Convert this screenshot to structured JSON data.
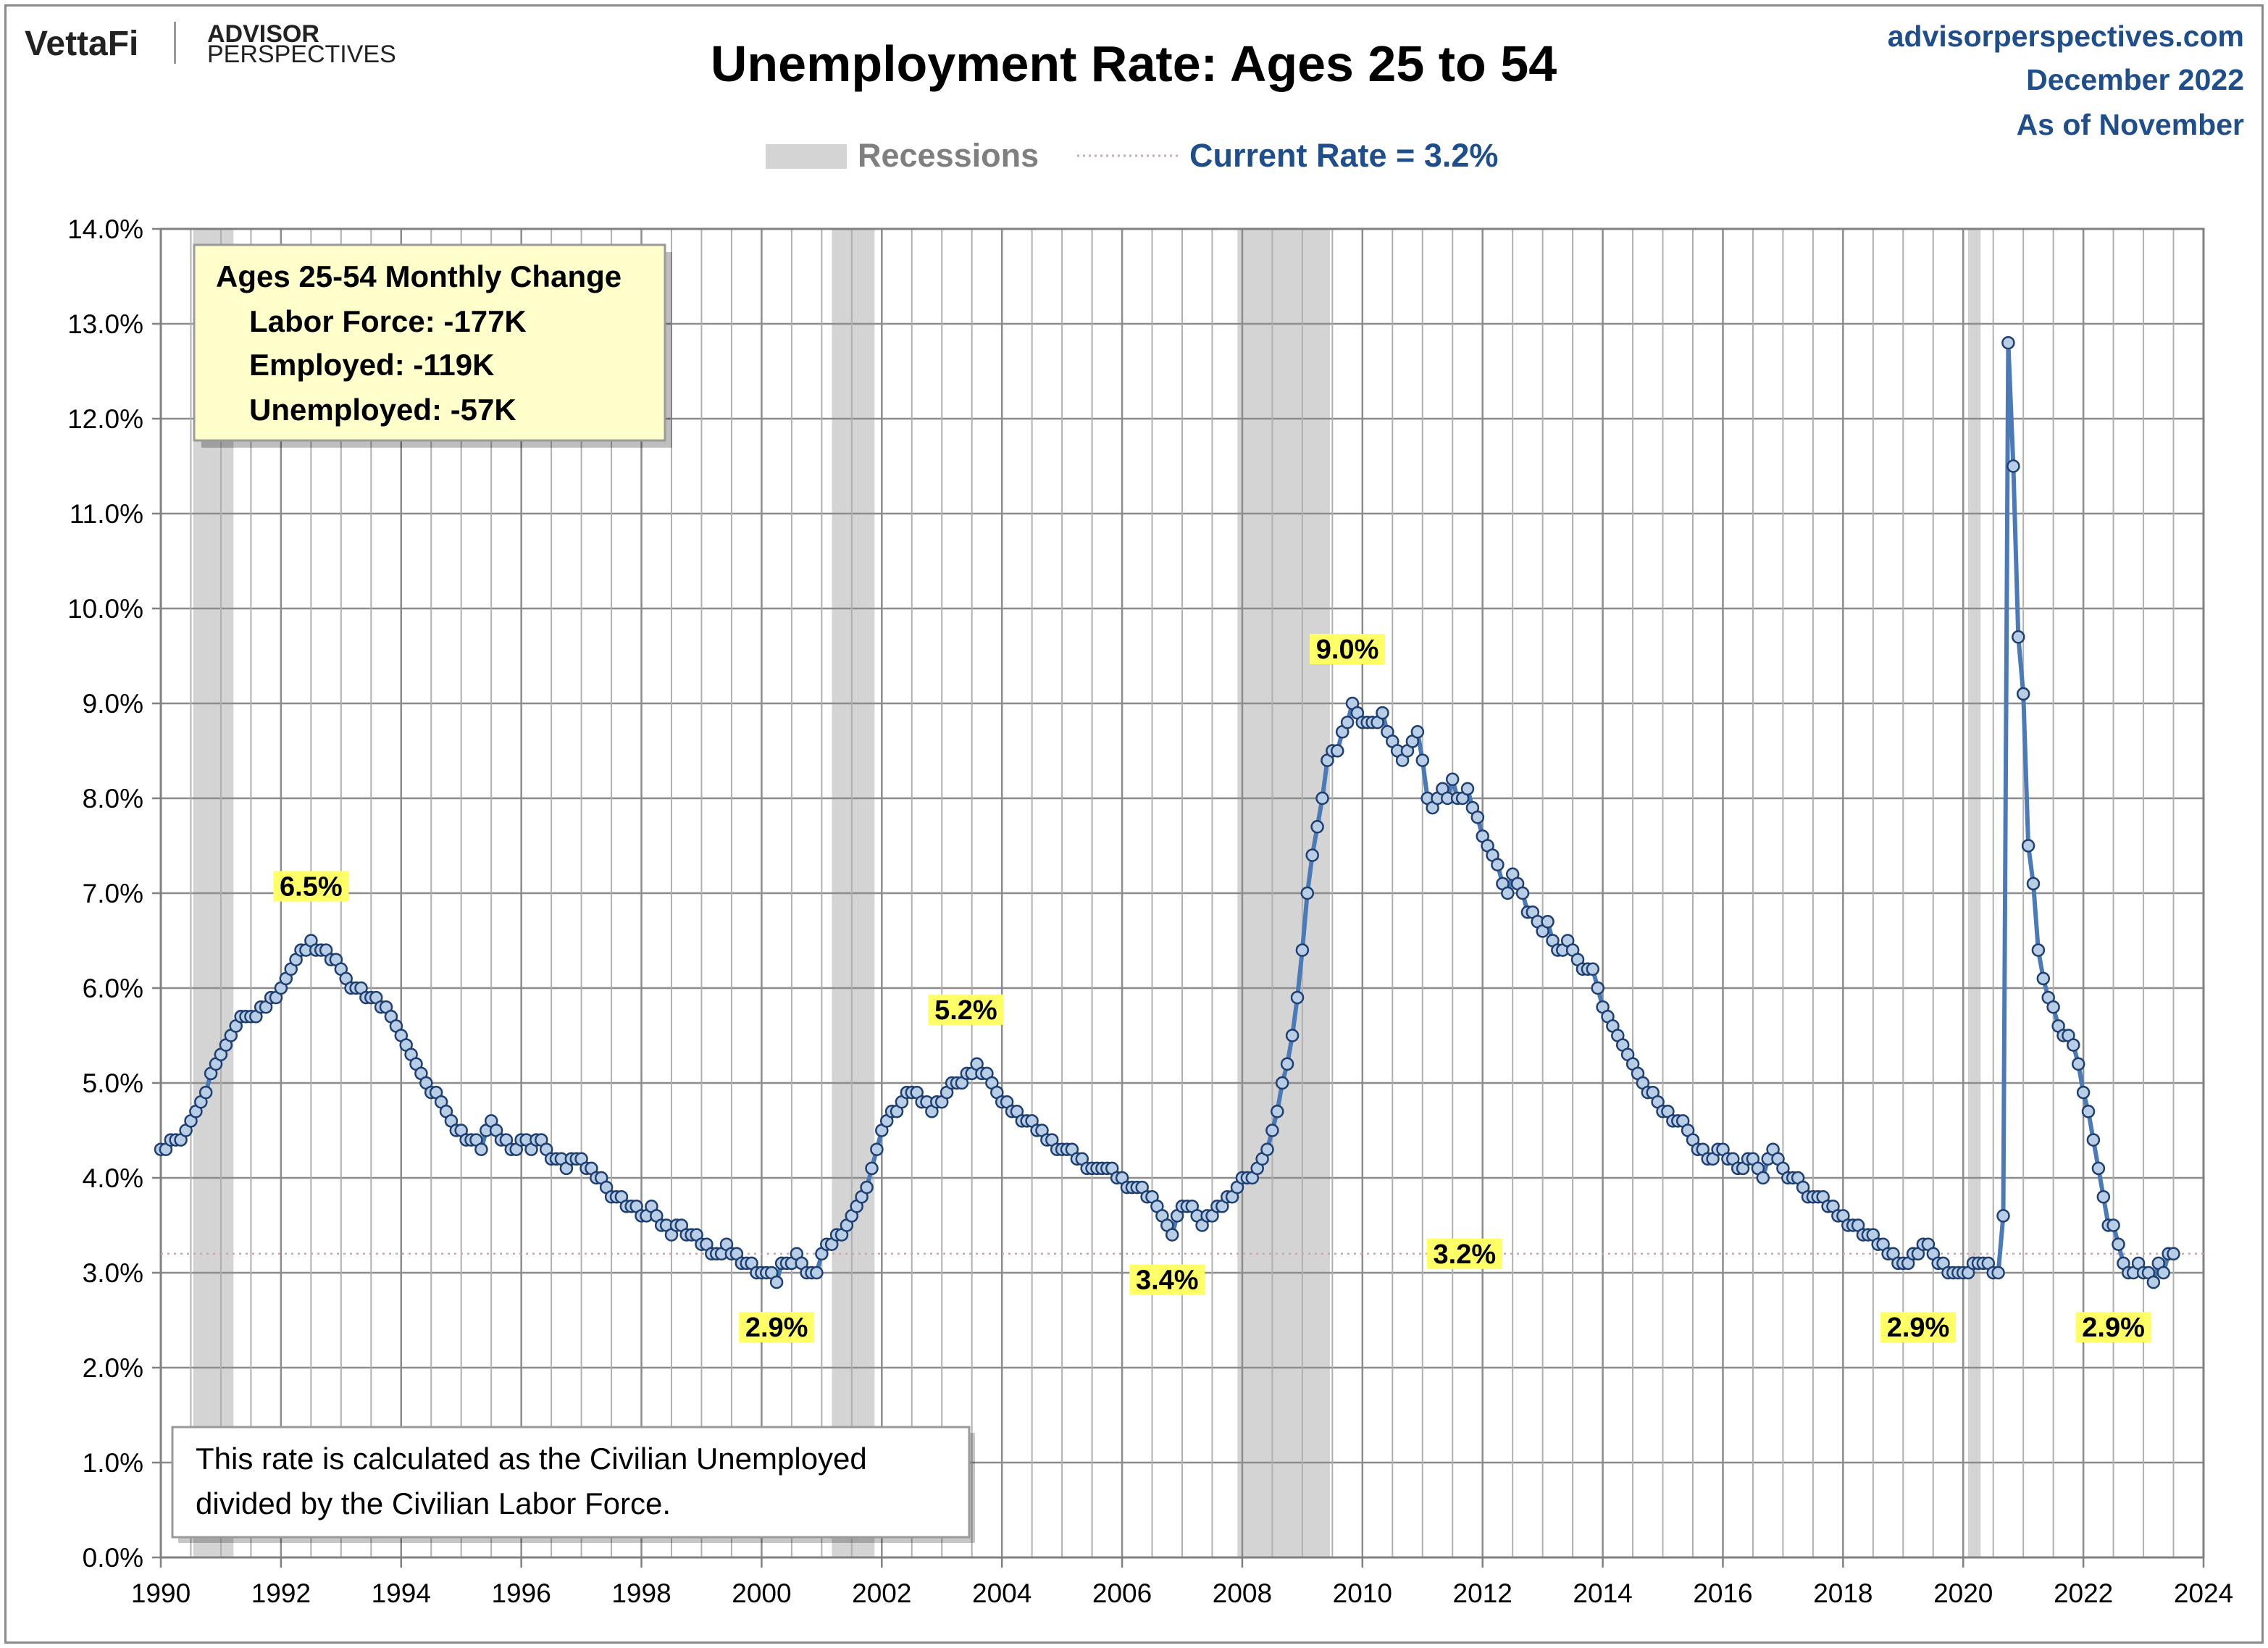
{
  "header": {
    "logo_left": "VettaFi",
    "logo_right_line1": "ADVISOR",
    "logo_right_line2": "PERSPECTIVES",
    "site": "advisorperspectives.com",
    "date": "December 2022",
    "as_of": "As of November"
  },
  "legend": {
    "recessions_label": "Recessions",
    "current_label": "Current Rate = 3.2%"
  },
  "info_box": {
    "title": "Ages 25-54 Monthly Change",
    "lines": [
      "Labor Force:  -177K",
      "Employed:  -119K",
      "Unemployed:  -57K"
    ]
  },
  "note": {
    "line1": "This rate is calculated as the Civilian Unemployed",
    "line2": "divided by the Civilian Labor Force."
  },
  "colors": {
    "line": "#4a7ab8",
    "marker_fill": "#b8cde6",
    "marker_stroke": "#1f3f70",
    "recession": "#d4d4d4",
    "callout_bg": "#ffff66",
    "header_text": "#1f4e8c",
    "box_bg": "#ffffcc",
    "current_line": "#d9a0b0"
  },
  "chart_data": {
    "type": "line",
    "title": "Unemployment Rate: Ages 25 to 54",
    "xlim": [
      1990,
      2024
    ],
    "ylim": [
      0,
      14
    ],
    "x_ticks": [
      "1990",
      "1992",
      "1994",
      "1996",
      "1998",
      "2000",
      "2002",
      "2004",
      "2006",
      "2008",
      "2010",
      "2012",
      "2014",
      "2016",
      "2018",
      "2020",
      "2022",
      "2024"
    ],
    "y_ticks": [
      "0.0%",
      "1.0%",
      "2.0%",
      "3.0%",
      "4.0%",
      "5.0%",
      "6.0%",
      "7.0%",
      "8.0%",
      "9.0%",
      "10.0%",
      "11.0%",
      "12.0%",
      "13.0%",
      "14.0%"
    ],
    "grid": true,
    "recessions": [
      [
        1990.54,
        1991.21
      ],
      [
        2001.17,
        2001.88
      ],
      [
        2007.92,
        2009.46
      ],
      [
        2020.08,
        2020.29
      ]
    ],
    "current_rate": 3.2,
    "current_label": "3.2%",
    "annotations": [
      {
        "label": "6.5%",
        "x": 1992.5,
        "y": 6.5
      },
      {
        "label": "2.9%",
        "x": 2000.25,
        "y": 2.9
      },
      {
        "label": "5.2%",
        "x": 2003.4,
        "y": 5.2
      },
      {
        "label": "3.4%",
        "x": 2006.75,
        "y": 3.4
      },
      {
        "label": "9.0%",
        "x": 2009.75,
        "y": 9.0
      },
      {
        "label": "2.9%",
        "x": 2019.25,
        "y": 2.9
      },
      {
        "label": "2.9%",
        "x": 2022.5,
        "y": 2.9
      }
    ],
    "series": [
      {
        "start": 1990.0,
        "step_months": 1,
        "values": [
          4.3,
          4.3,
          4.4,
          4.4,
          4.4,
          4.5,
          4.6,
          4.7,
          4.8,
          4.9,
          5.1,
          5.2,
          5.3,
          5.4,
          5.5,
          5.6,
          5.7,
          5.7,
          5.7,
          5.7,
          5.8,
          5.8,
          5.9,
          5.9,
          6.0,
          6.1,
          6.2,
          6.3,
          6.4,
          6.4,
          6.5,
          6.4,
          6.4,
          6.4,
          6.3,
          6.3,
          6.2,
          6.1,
          6.0,
          6.0,
          6.0,
          5.9,
          5.9,
          5.9,
          5.8,
          5.8,
          5.7,
          5.6,
          5.5,
          5.4,
          5.3,
          5.2,
          5.1,
          5.0,
          4.9,
          4.9,
          4.8,
          4.7,
          4.6,
          4.5,
          4.5,
          4.4,
          4.4,
          4.4,
          4.3,
          4.5,
          4.6,
          4.5,
          4.4,
          4.4,
          4.3,
          4.3,
          4.4,
          4.4,
          4.3,
          4.4,
          4.4,
          4.3,
          4.2,
          4.2,
          4.2,
          4.1,
          4.2,
          4.2,
          4.2,
          4.1,
          4.1,
          4.0,
          4.0,
          3.9,
          3.8,
          3.8,
          3.8,
          3.7,
          3.7,
          3.7,
          3.6,
          3.6,
          3.7,
          3.6,
          3.5,
          3.5,
          3.4,
          3.5,
          3.5,
          3.4,
          3.4,
          3.4,
          3.3,
          3.3,
          3.2,
          3.2,
          3.2,
          3.3,
          3.2,
          3.2,
          3.1,
          3.1,
          3.1,
          3.0,
          3.0,
          3.0,
          3.0,
          2.9,
          3.1,
          3.1,
          3.1,
          3.2,
          3.1,
          3.0,
          3.0,
          3.0,
          3.2,
          3.3,
          3.3,
          3.4,
          3.4,
          3.5,
          3.6,
          3.7,
          3.8,
          3.9,
          4.1,
          4.3,
          4.5,
          4.6,
          4.7,
          4.7,
          4.8,
          4.9,
          4.9,
          4.9,
          4.8,
          4.8,
          4.7,
          4.8,
          4.8,
          4.9,
          5.0,
          5.0,
          5.0,
          5.1,
          5.1,
          5.2,
          5.1,
          5.1,
          5.0,
          4.9,
          4.8,
          4.8,
          4.7,
          4.7,
          4.6,
          4.6,
          4.6,
          4.5,
          4.5,
          4.4,
          4.4,
          4.3,
          4.3,
          4.3,
          4.3,
          4.2,
          4.2,
          4.1,
          4.1,
          4.1,
          4.1,
          4.1,
          4.1,
          4.0,
          4.0,
          3.9,
          3.9,
          3.9,
          3.9,
          3.8,
          3.8,
          3.7,
          3.6,
          3.5,
          3.4,
          3.6,
          3.7,
          3.7,
          3.7,
          3.6,
          3.5,
          3.6,
          3.6,
          3.7,
          3.7,
          3.8,
          3.8,
          3.9,
          4.0,
          4.0,
          4.0,
          4.1,
          4.2,
          4.3,
          4.5,
          4.7,
          5.0,
          5.2,
          5.5,
          5.9,
          6.4,
          7.0,
          7.4,
          7.7,
          8.0,
          8.4,
          8.5,
          8.5,
          8.7,
          8.8,
          9.0,
          8.9,
          8.8,
          8.8,
          8.8,
          8.8,
          8.9,
          8.7,
          8.6,
          8.5,
          8.4,
          8.5,
          8.6,
          8.7,
          8.4,
          8.0,
          7.9,
          8.0,
          8.1,
          8.0,
          8.2,
          8.0,
          8.0,
          8.1,
          7.9,
          7.8,
          7.6,
          7.5,
          7.4,
          7.3,
          7.1,
          7.0,
          7.2,
          7.1,
          7.0,
          6.8,
          6.8,
          6.7,
          6.6,
          6.7,
          6.5,
          6.4,
          6.4,
          6.5,
          6.4,
          6.3,
          6.2,
          6.2,
          6.2,
          6.0,
          5.8,
          5.7,
          5.6,
          5.5,
          5.4,
          5.3,
          5.2,
          5.1,
          5.0,
          4.9,
          4.9,
          4.8,
          4.7,
          4.7,
          4.6,
          4.6,
          4.6,
          4.5,
          4.4,
          4.3,
          4.3,
          4.2,
          4.2,
          4.3,
          4.3,
          4.2,
          4.2,
          4.1,
          4.1,
          4.2,
          4.2,
          4.1,
          4.0,
          4.2,
          4.3,
          4.2,
          4.1,
          4.0,
          4.0,
          4.0,
          3.9,
          3.8,
          3.8,
          3.8,
          3.8,
          3.7,
          3.7,
          3.6,
          3.6,
          3.5,
          3.5,
          3.5,
          3.4,
          3.4,
          3.4,
          3.3,
          3.3,
          3.2,
          3.2,
          3.1,
          3.1,
          3.1,
          3.2,
          3.2,
          3.3,
          3.3,
          3.2,
          3.1,
          3.1,
          3.0,
          3.0,
          3.0,
          3.0,
          3.0,
          3.1,
          3.1,
          3.1,
          3.1,
          3.0,
          3.0,
          3.6,
          12.8,
          11.5,
          9.7,
          9.1,
          7.5,
          7.1,
          6.4,
          6.1,
          5.9,
          5.8,
          5.6,
          5.5,
          5.5,
          5.4,
          5.2,
          4.9,
          4.7,
          4.4,
          4.1,
          3.8,
          3.5,
          3.5,
          3.3,
          3.1,
          3.0,
          3.0,
          3.1,
          3.0,
          3.0,
          2.9,
          3.1,
          3.0,
          3.2,
          3.2
        ]
      }
    ]
  }
}
